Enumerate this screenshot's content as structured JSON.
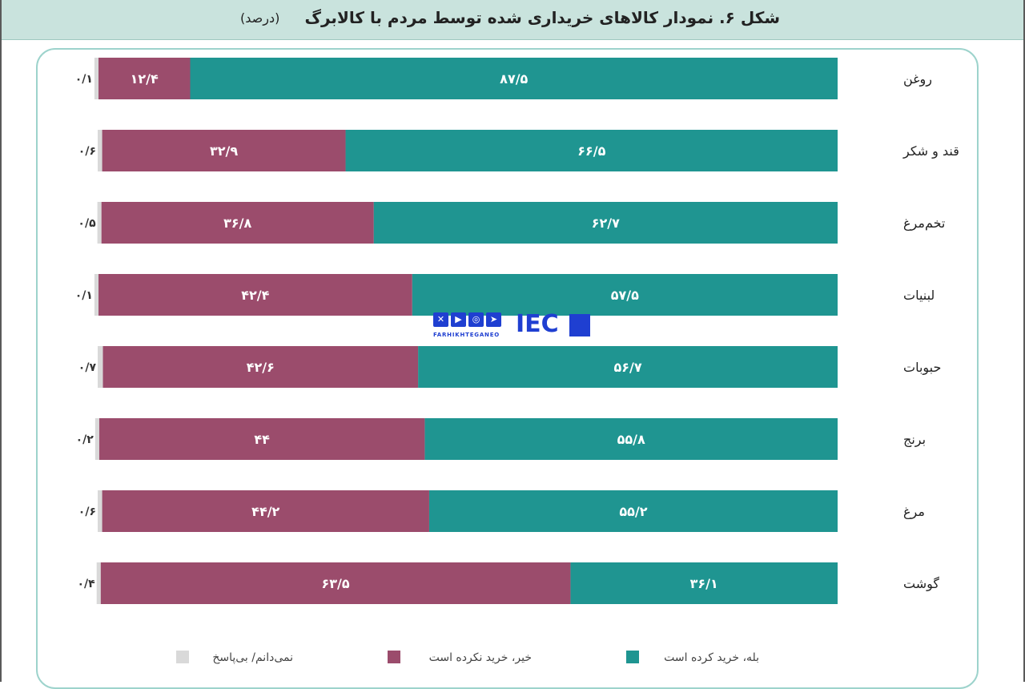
{
  "header": {
    "title": "شکل ۶. نمودار کالاهای خریداری شده توسط مردم با کالابرگ",
    "unit": "(درصد)"
  },
  "watermark": {
    "caption": "FARHIKHTEGANEO",
    "logo": "IEC",
    "icons": [
      "x-icon",
      "youtube-icon",
      "instagram-icon",
      "telegram-icon"
    ]
  },
  "colors": {
    "yes": "#1f9591",
    "no": "#9b4c6c",
    "na": "#d9d9d9",
    "header_bg": "#c9e3dd",
    "frame": "#9dd3cc"
  },
  "chart_data": {
    "type": "bar",
    "orientation": "horizontal",
    "stacked": true,
    "categories": [
      "روغن",
      "قند و شکر",
      "تخم‌مرغ",
      "لبنیات",
      "حبوبات",
      "برنج",
      "مرغ",
      "گوشت"
    ],
    "series": [
      {
        "name": "بله، خرید کرده است",
        "values": [
          87.5,
          66.5,
          62.7,
          57.5,
          56.7,
          55.8,
          55.2,
          36.1
        ],
        "labels": [
          "۸۷/۵",
          "۶۶/۵",
          "۶۲/۷",
          "۵۷/۵",
          "۵۶/۷",
          "۵۵/۸",
          "۵۵/۲",
          "۳۶/۱"
        ]
      },
      {
        "name": "خیر، خرید نکرده است",
        "values": [
          12.4,
          32.9,
          36.8,
          42.4,
          42.6,
          44,
          44.2,
          63.5
        ],
        "labels": [
          "۱۲/۴",
          "۳۲/۹",
          "۳۶/۸",
          "۴۲/۴",
          "۴۲/۶",
          "۴۴",
          "۴۴/۲",
          "۶۳/۵"
        ]
      },
      {
        "name": "نمی‌دانم/ بی‌پاسخ",
        "values": [
          0.1,
          0.6,
          0.5,
          0.1,
          0.7,
          0.2,
          0.6,
          0.4
        ],
        "labels": [
          "۰/۱",
          "۰/۶",
          "۰/۵",
          "۰/۱",
          "۰/۷",
          "۰/۲",
          "۰/۶",
          "۰/۴"
        ]
      }
    ],
    "xlim": [
      0,
      100
    ],
    "grid": false,
    "legend_position": "bottom"
  }
}
